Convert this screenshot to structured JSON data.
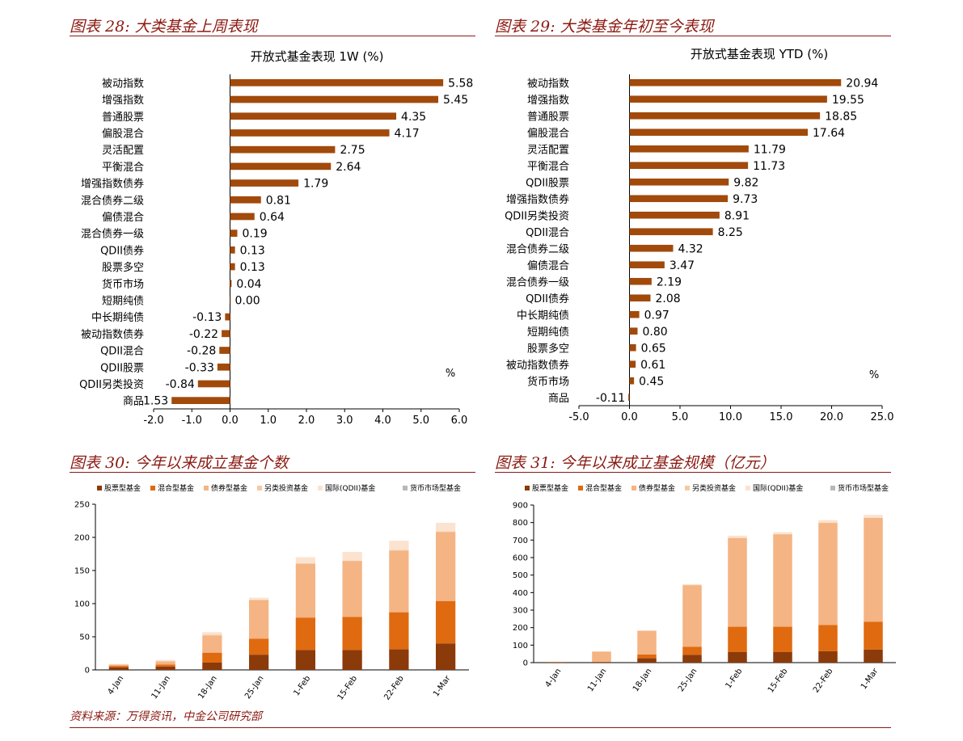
{
  "figures": [
    {
      "title": "图表 28:  大类基金上周表现"
    },
    {
      "title": "图表 29:  大类基金年初至今表现"
    },
    {
      "title": "图表 30:  今年以来成立基金个数"
    },
    {
      "title": "图表 31:  今年以来成立基金规模（亿元）"
    }
  ],
  "footer": "资料来源：万得资讯，中金公司研究部",
  "colors": {
    "bar": "#a14a0b",
    "rule": "#8b1a12",
    "stack": [
      "#8b3a0a",
      "#e06a0f",
      "#f4b483",
      "#f7c9a2",
      "#fbe3d0",
      "#b8b8b8"
    ]
  },
  "chart_data": [
    {
      "type": "bar",
      "orientation": "horizontal",
      "title": "开放式基金表现 1W (%)",
      "unit_label": "%",
      "categories": [
        "被动指数",
        "增强指数",
        "普通股票",
        "偏股混合",
        "灵活配置",
        "平衡混合",
        "增强指数债券",
        "混合债券二级",
        "偏债混合",
        "混合债券一级",
        "QDII债券",
        "股票多空",
        "货币市场",
        "短期纯债",
        "中长期纯债",
        "被动指数债券",
        "QDII混合",
        "QDII股票",
        "QDII另类投资",
        "商品"
      ],
      "values": [
        5.58,
        5.45,
        4.35,
        4.17,
        2.75,
        2.64,
        1.79,
        0.81,
        0.64,
        0.19,
        0.13,
        0.13,
        0.04,
        0.0,
        -0.13,
        -0.22,
        -0.28,
        -0.33,
        -0.84,
        -1.53
      ],
      "labels": [
        "5.58",
        "5.45",
        "4.35",
        "4.17",
        "2.75",
        "2.64",
        "1.79",
        "0.81",
        "0.64",
        "0.19",
        "0.13",
        "0.13",
        "0.04",
        "0.00",
        "-0.13",
        "-0.22",
        "-0.28",
        "-0.33",
        "-0.84",
        "-1.53"
      ],
      "xlim": [
        -2.0,
        6.0
      ],
      "ticks": [
        "-2.0",
        "-1.0",
        "0.0",
        "1.0",
        "2.0",
        "3.0",
        "4.0",
        "5.0",
        "6.0"
      ]
    },
    {
      "type": "bar",
      "orientation": "horizontal",
      "title": "开放式基金表现 YTD (%)",
      "unit_label": "%",
      "categories": [
        "被动指数",
        "增强指数",
        "普通股票",
        "偏股混合",
        "灵活配置",
        "平衡混合",
        "QDII股票",
        "增强指数债券",
        "QDII另类投资",
        "QDII混合",
        "混合债券二级",
        "偏债混合",
        "混合债券一级",
        "QDII债券",
        "中长期纯债",
        "短期纯债",
        "股票多空",
        "被动指数债券",
        "货币市场",
        "商品"
      ],
      "values": [
        20.94,
        19.55,
        18.85,
        17.64,
        11.79,
        11.73,
        9.82,
        9.73,
        8.91,
        8.25,
        4.32,
        3.47,
        2.19,
        2.08,
        0.97,
        0.8,
        0.65,
        0.61,
        0.45,
        -0.11
      ],
      "labels": [
        "20.94",
        "19.55",
        "18.85",
        "17.64",
        "11.79",
        "11.73",
        "9.82",
        "9.73",
        "8.91",
        "8.25",
        "4.32",
        "3.47",
        "2.19",
        "2.08",
        "0.97",
        "0.80",
        "0.65",
        "0.61",
        "0.45",
        "-0.11"
      ],
      "xlim": [
        -5.0,
        25.0
      ],
      "ticks": [
        "-5.0",
        "0.0",
        "5.0",
        "10.0",
        "15.0",
        "20.0",
        "25.0"
      ]
    },
    {
      "type": "bar",
      "stacked": true,
      "categories": [
        "4-Jan",
        "11-Jan",
        "18-Jan",
        "25-Jan",
        "1-Feb",
        "15-Feb",
        "22-Feb",
        "1-Mar"
      ],
      "series": [
        {
          "name": "股票型基金",
          "values": [
            4,
            5,
            11,
            23,
            30,
            30,
            31,
            40
          ]
        },
        {
          "name": "混合型基金",
          "values": [
            2,
            3,
            15,
            24,
            49,
            50,
            56,
            64
          ]
        },
        {
          "name": "债券型基金",
          "values": [
            2,
            5,
            26,
            58,
            81,
            84,
            93,
            104
          ]
        },
        {
          "name": "另类投资基金",
          "values": [
            0,
            0,
            1,
            1,
            1,
            1,
            1,
            1
          ]
        },
        {
          "name": "国际(QDII)基金",
          "values": [
            1,
            2,
            4,
            3,
            9,
            13,
            14,
            13
          ]
        },
        {
          "name": "货币市场型基金",
          "values": [
            0,
            0,
            0,
            0,
            0,
            0,
            0,
            0
          ]
        }
      ],
      "ylim": [
        0,
        250
      ],
      "ticks": [
        "0",
        "50",
        "100",
        "150",
        "200",
        "250"
      ],
      "legend": "top"
    },
    {
      "type": "bar",
      "stacked": true,
      "categories": [
        "4-Jan",
        "11-Jan",
        "18-Jan",
        "25-Jan",
        "1-Feb",
        "15-Feb",
        "22-Feb",
        "1-Mar"
      ],
      "series": [
        {
          "name": "股票型基金",
          "values": [
            2,
            3,
            25,
            45,
            60,
            60,
            65,
            75
          ]
        },
        {
          "name": "混合型基金",
          "values": [
            1,
            2,
            22,
            45,
            145,
            145,
            150,
            158
          ]
        },
        {
          "name": "债券型基金",
          "values": [
            2,
            58,
            133,
            352,
            507,
            527,
            583,
            593
          ]
        },
        {
          "name": "另类投资基金",
          "values": [
            0,
            0,
            2,
            3,
            2,
            2,
            2,
            2
          ]
        },
        {
          "name": "国际(QDII)基金",
          "values": [
            0,
            1,
            3,
            2,
            11,
            11,
            14,
            16
          ]
        },
        {
          "name": "货币市场型基金",
          "values": [
            0,
            0,
            0,
            0,
            0,
            0,
            0,
            0
          ]
        }
      ],
      "ylim": [
        0,
        900
      ],
      "ticks": [
        "0",
        "100",
        "200",
        "300",
        "400",
        "500",
        "600",
        "700",
        "800",
        "900"
      ],
      "legend": "top"
    }
  ]
}
